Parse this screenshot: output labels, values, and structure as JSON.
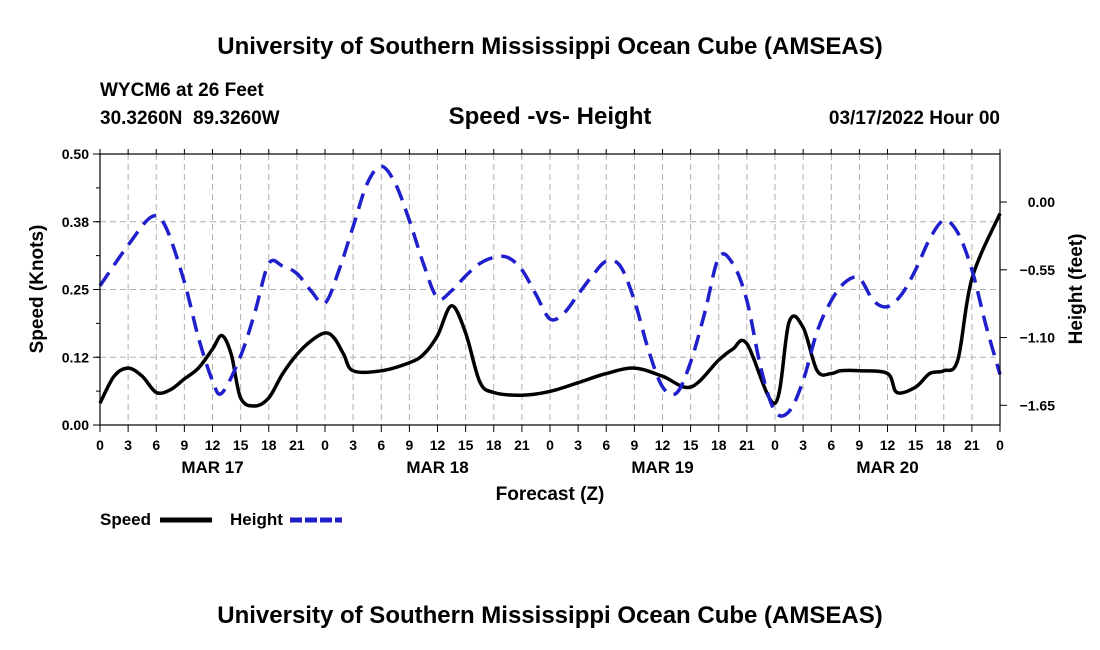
{
  "header": {
    "title": "University of Southern Mississippi Ocean Cube (AMSEAS)",
    "station": "WYCM6 at 26 Feet",
    "coords": "30.3260N  89.3260W",
    "plot_title": "Speed -vs- Height",
    "datetime": "03/17/2022 Hour 00"
  },
  "footer": {
    "title": "University of Southern Mississippi Ocean Cube (AMSEAS)"
  },
  "colors": {
    "speed": "#000000",
    "height": "#1f1fcc",
    "grid": "#b0b0b0"
  },
  "chart_data": {
    "type": "line",
    "title": "Speed -vs- Height",
    "xlabel": "Forecast (Z)",
    "ylabel": "Speed (Knots)",
    "y2label": "Height (feet)",
    "xlim": [
      0,
      96
    ],
    "ylim": [
      0,
      0.5
    ],
    "y2lim": [
      -1.81,
      0.39
    ],
    "x_tick_hours": [
      0,
      3,
      6,
      9,
      12,
      15,
      18,
      21,
      24,
      27,
      30,
      33,
      36,
      39,
      42,
      45,
      48,
      51,
      54,
      57,
      60,
      63,
      66,
      69,
      72,
      75,
      78,
      81,
      84,
      87,
      90,
      93,
      96
    ],
    "x_tick_labels": [
      "0",
      "3",
      "6",
      "9",
      "12",
      "15",
      "18",
      "21",
      "0",
      "3",
      "6",
      "9",
      "12",
      "15",
      "18",
      "21",
      "0",
      "3",
      "6",
      "9",
      "12",
      "15",
      "18",
      "21",
      "0",
      "3",
      "6",
      "9",
      "12",
      "15",
      "18",
      "21",
      "0"
    ],
    "date_labels": [
      {
        "hour": 12,
        "label": "MAR 17"
      },
      {
        "hour": 36,
        "label": "MAR 18"
      },
      {
        "hour": 60,
        "label": "MAR 19"
      },
      {
        "hour": 84,
        "label": "MAR 20"
      }
    ],
    "y_ticks": [
      0.0,
      0.125,
      0.25,
      0.375,
      0.5
    ],
    "y_tick_labels": [
      "0.00",
      "0.12",
      "0.25",
      "0.38",
      "0.50"
    ],
    "y2_ticks": [
      0.0,
      -0.55,
      -1.1,
      -1.65
    ],
    "y2_tick_labels": [
      "0.00",
      "−0.55",
      "−1.10",
      "−1.65"
    ],
    "series": [
      {
        "name": "Speed",
        "axis": "left",
        "style": "solid",
        "x": [
          0,
          1.5,
          3,
          4.5,
          6,
          7.5,
          9,
          10.5,
          12,
          13,
          14,
          15,
          16.5,
          18,
          19.5,
          21,
          22.5,
          24,
          25,
          26,
          27,
          30,
          33,
          34.5,
          36,
          37.5,
          39,
          40.5,
          42,
          45,
          48,
          51,
          54,
          57,
          60,
          63,
          66,
          67.5,
          69,
          72,
          73.5,
          75,
          76.5,
          78,
          79,
          81,
          84,
          85,
          87,
          88.5,
          90,
          91.5,
          93,
          96
        ],
        "values": [
          0.04,
          0.09,
          0.105,
          0.09,
          0.06,
          0.065,
          0.085,
          0.105,
          0.14,
          0.165,
          0.13,
          0.05,
          0.035,
          0.05,
          0.095,
          0.13,
          0.155,
          0.17,
          0.16,
          0.13,
          0.1,
          0.1,
          0.115,
          0.13,
          0.165,
          0.22,
          0.17,
          0.08,
          0.06,
          0.055,
          0.062,
          0.078,
          0.095,
          0.105,
          0.09,
          0.07,
          0.12,
          0.14,
          0.15,
          0.04,
          0.19,
          0.18,
          0.1,
          0.095,
          0.1,
          0.1,
          0.095,
          0.06,
          0.07,
          0.095,
          0.1,
          0.12,
          0.27,
          0.39
        ]
      },
      {
        "name": "Height",
        "axis": "right",
        "style": "dashed",
        "x": [
          0,
          3,
          5.5,
          7,
          9,
          10.5,
          12,
          13,
          15,
          16.5,
          18,
          19.5,
          21,
          22.5,
          24,
          25.5,
          27,
          28.5,
          30,
          31.5,
          33,
          34.5,
          36,
          37.5,
          39,
          40.5,
          42,
          43.5,
          45,
          46.5,
          48,
          49.5,
          51,
          52.5,
          54,
          55.5,
          57,
          58.5,
          60,
          61.5,
          63,
          64.5,
          66,
          67.5,
          69,
          70.5,
          72,
          73.5,
          75,
          76.5,
          78,
          79.5,
          81,
          82.5,
          84,
          85.5,
          87,
          88.5,
          90,
          91.5,
          93,
          94.5,
          96
        ],
        "values": [
          -0.68,
          -0.35,
          -0.12,
          -0.2,
          -0.65,
          -1.1,
          -1.45,
          -1.55,
          -1.25,
          -0.9,
          -0.5,
          -0.52,
          -0.58,
          -0.72,
          -0.82,
          -0.55,
          -0.2,
          0.15,
          0.29,
          0.15,
          -0.15,
          -0.5,
          -0.78,
          -0.72,
          -0.6,
          -0.5,
          -0.45,
          -0.45,
          -0.55,
          -0.75,
          -0.95,
          -0.9,
          -0.75,
          -0.6,
          -0.48,
          -0.52,
          -0.8,
          -1.2,
          -1.5,
          -1.55,
          -1.3,
          -0.9,
          -0.45,
          -0.5,
          -0.8,
          -1.35,
          -1.7,
          -1.7,
          -1.45,
          -1.05,
          -0.8,
          -0.65,
          -0.62,
          -0.8,
          -0.85,
          -0.75,
          -0.55,
          -0.3,
          -0.15,
          -0.25,
          -0.55,
          -1.0,
          -1.4
        ]
      }
    ],
    "legend": [
      {
        "label": "Speed",
        "style": "solid"
      },
      {
        "label": "Height",
        "style": "dashed"
      }
    ]
  }
}
